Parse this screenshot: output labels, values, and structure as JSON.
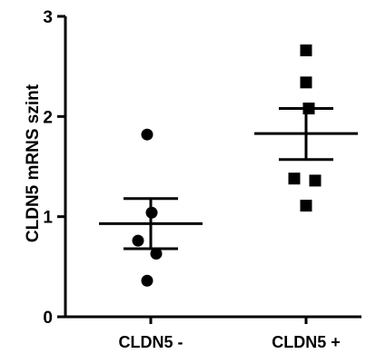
{
  "chart_data": {
    "type": "scatter",
    "ylabel": "CLDN5 mRNS szint",
    "xlabel": "",
    "ylim": [
      0,
      3
    ],
    "yticks": [
      0,
      1,
      2,
      3
    ],
    "categories": [
      "CLDN5 -",
      "CLDN5 +"
    ],
    "grid": false,
    "series": [
      {
        "category": "CLDN5 -",
        "marker": "circle",
        "values": [
          1.82,
          1.04,
          0.76,
          0.63,
          0.36
        ],
        "mean": 0.93,
        "error_upper": 1.18,
        "error_lower": 0.68
      },
      {
        "category": "CLDN5 +",
        "marker": "square",
        "values": [
          2.66,
          2.34,
          2.08,
          1.38,
          1.36,
          1.11
        ],
        "mean": 1.83,
        "error_upper": 2.08,
        "error_lower": 1.57
      }
    ]
  }
}
